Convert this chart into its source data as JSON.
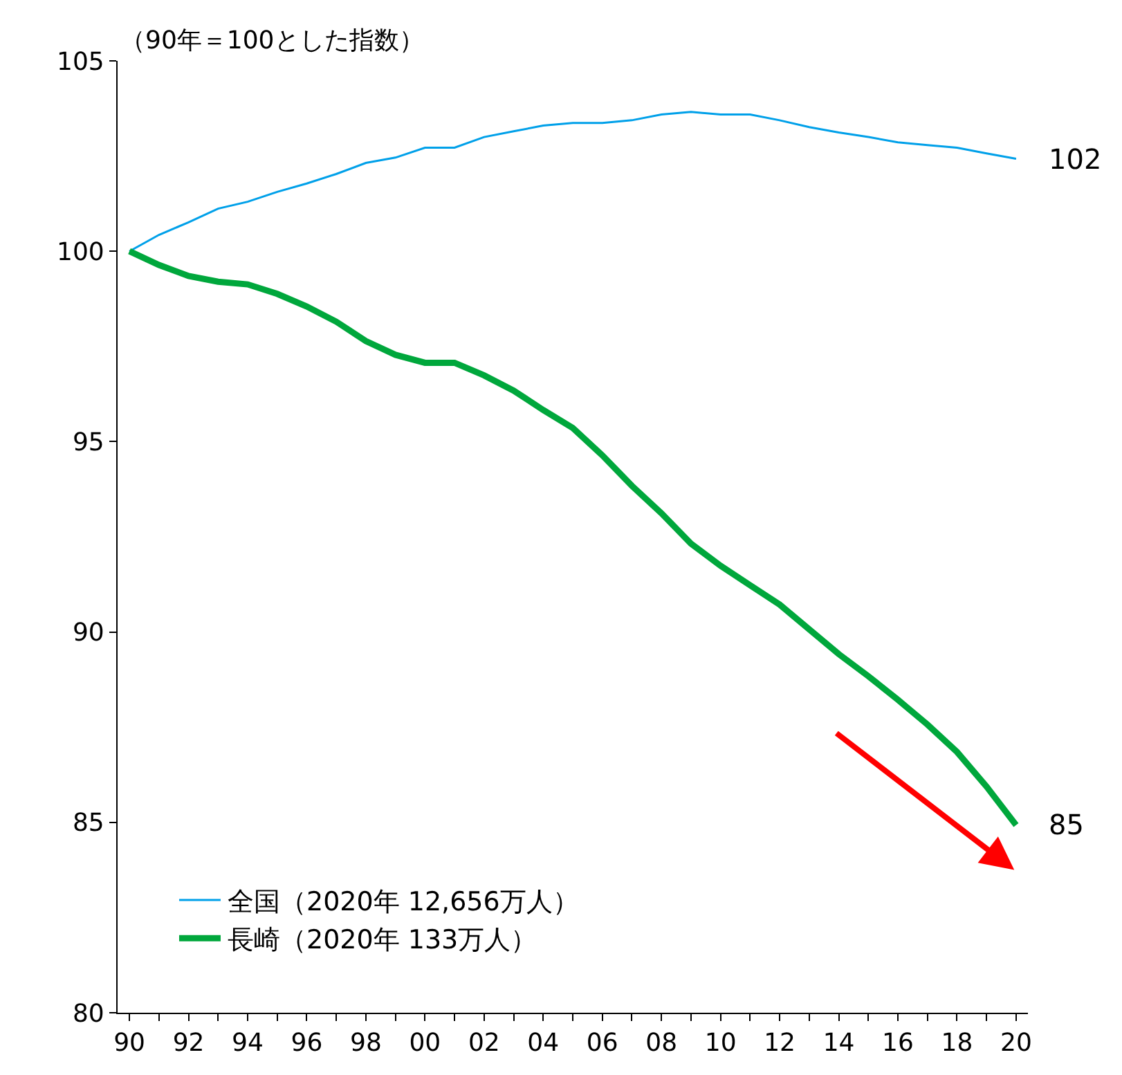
{
  "chart_data": {
    "type": "line",
    "ylabel": "（90年＝100とした指数）",
    "x": [
      1990,
      1991,
      1992,
      1993,
      1994,
      1995,
      1996,
      1997,
      1998,
      1999,
      2000,
      2001,
      2002,
      2003,
      2004,
      2005,
      2006,
      2007,
      2008,
      2009,
      2010,
      2011,
      2012,
      2013,
      2014,
      2015,
      2016,
      2017,
      2018,
      2019,
      2020
    ],
    "series": [
      {
        "name": "全国（2020年 12,656万人）",
        "color": "#00a0e9",
        "values": [
          100,
          100.43,
          100.76,
          101.12,
          101.3,
          101.56,
          101.78,
          102.03,
          102.32,
          102.46,
          102.72,
          102.72,
          103.0,
          103.15,
          103.3,
          103.37,
          103.37,
          103.44,
          103.59,
          103.66,
          103.59,
          103.59,
          103.44,
          103.26,
          103.12,
          103.0,
          102.86,
          102.79,
          102.72,
          102.57,
          102.43
        ],
        "value_labels": [
          null,
          null,
          null,
          null,
          null,
          null,
          null,
          null,
          null,
          null,
          null,
          null,
          null,
          null,
          null,
          null,
          null,
          null,
          null,
          null,
          null,
          null,
          null,
          null,
          null,
          null,
          null,
          null,
          null,
          null,
          "102"
        ]
      },
      {
        "name": "長崎（2020年 133万人）",
        "color": "#00a73c",
        "values": [
          100,
          99.64,
          99.35,
          99.2,
          99.13,
          98.88,
          98.55,
          98.15,
          97.64,
          97.28,
          97.07,
          97.07,
          96.74,
          96.34,
          95.83,
          95.36,
          94.64,
          93.84,
          93.12,
          92.32,
          91.74,
          91.23,
          90.72,
          90.07,
          89.42,
          88.84,
          88.22,
          87.57,
          86.85,
          85.94,
          84.93
        ],
        "value_labels": [
          null,
          null,
          null,
          null,
          null,
          null,
          null,
          null,
          null,
          null,
          null,
          null,
          null,
          null,
          null,
          null,
          null,
          null,
          null,
          null,
          null,
          null,
          null,
          null,
          null,
          null,
          null,
          null,
          null,
          null,
          "85"
        ]
      }
    ],
    "xlim": [
      1989.6,
      2020.4
    ],
    "xticks": [
      {
        "value": 1990,
        "label": "90"
      },
      {
        "value": 1992,
        "label": "92"
      },
      {
        "value": 1994,
        "label": "94"
      },
      {
        "value": 1996,
        "label": "96"
      },
      {
        "value": 1998,
        "label": "98"
      },
      {
        "value": 2000,
        "label": "00"
      },
      {
        "value": 2002,
        "label": "02"
      },
      {
        "value": 2004,
        "label": "04"
      },
      {
        "value": 2006,
        "label": "06"
      },
      {
        "value": 2008,
        "label": "08"
      },
      {
        "value": 2010,
        "label": "10"
      },
      {
        "value": 2012,
        "label": "12"
      },
      {
        "value": 2014,
        "label": "14"
      },
      {
        "value": 2016,
        "label": "16"
      },
      {
        "value": 2018,
        "label": "18"
      },
      {
        "value": 2020,
        "label": "20"
      }
    ],
    "ylim": [
      80,
      105
    ],
    "yticks": [
      80,
      85,
      90,
      95,
      100,
      105
    ],
    "legend": "bottom left",
    "marker": "none",
    "line_style": "solid"
  }
}
